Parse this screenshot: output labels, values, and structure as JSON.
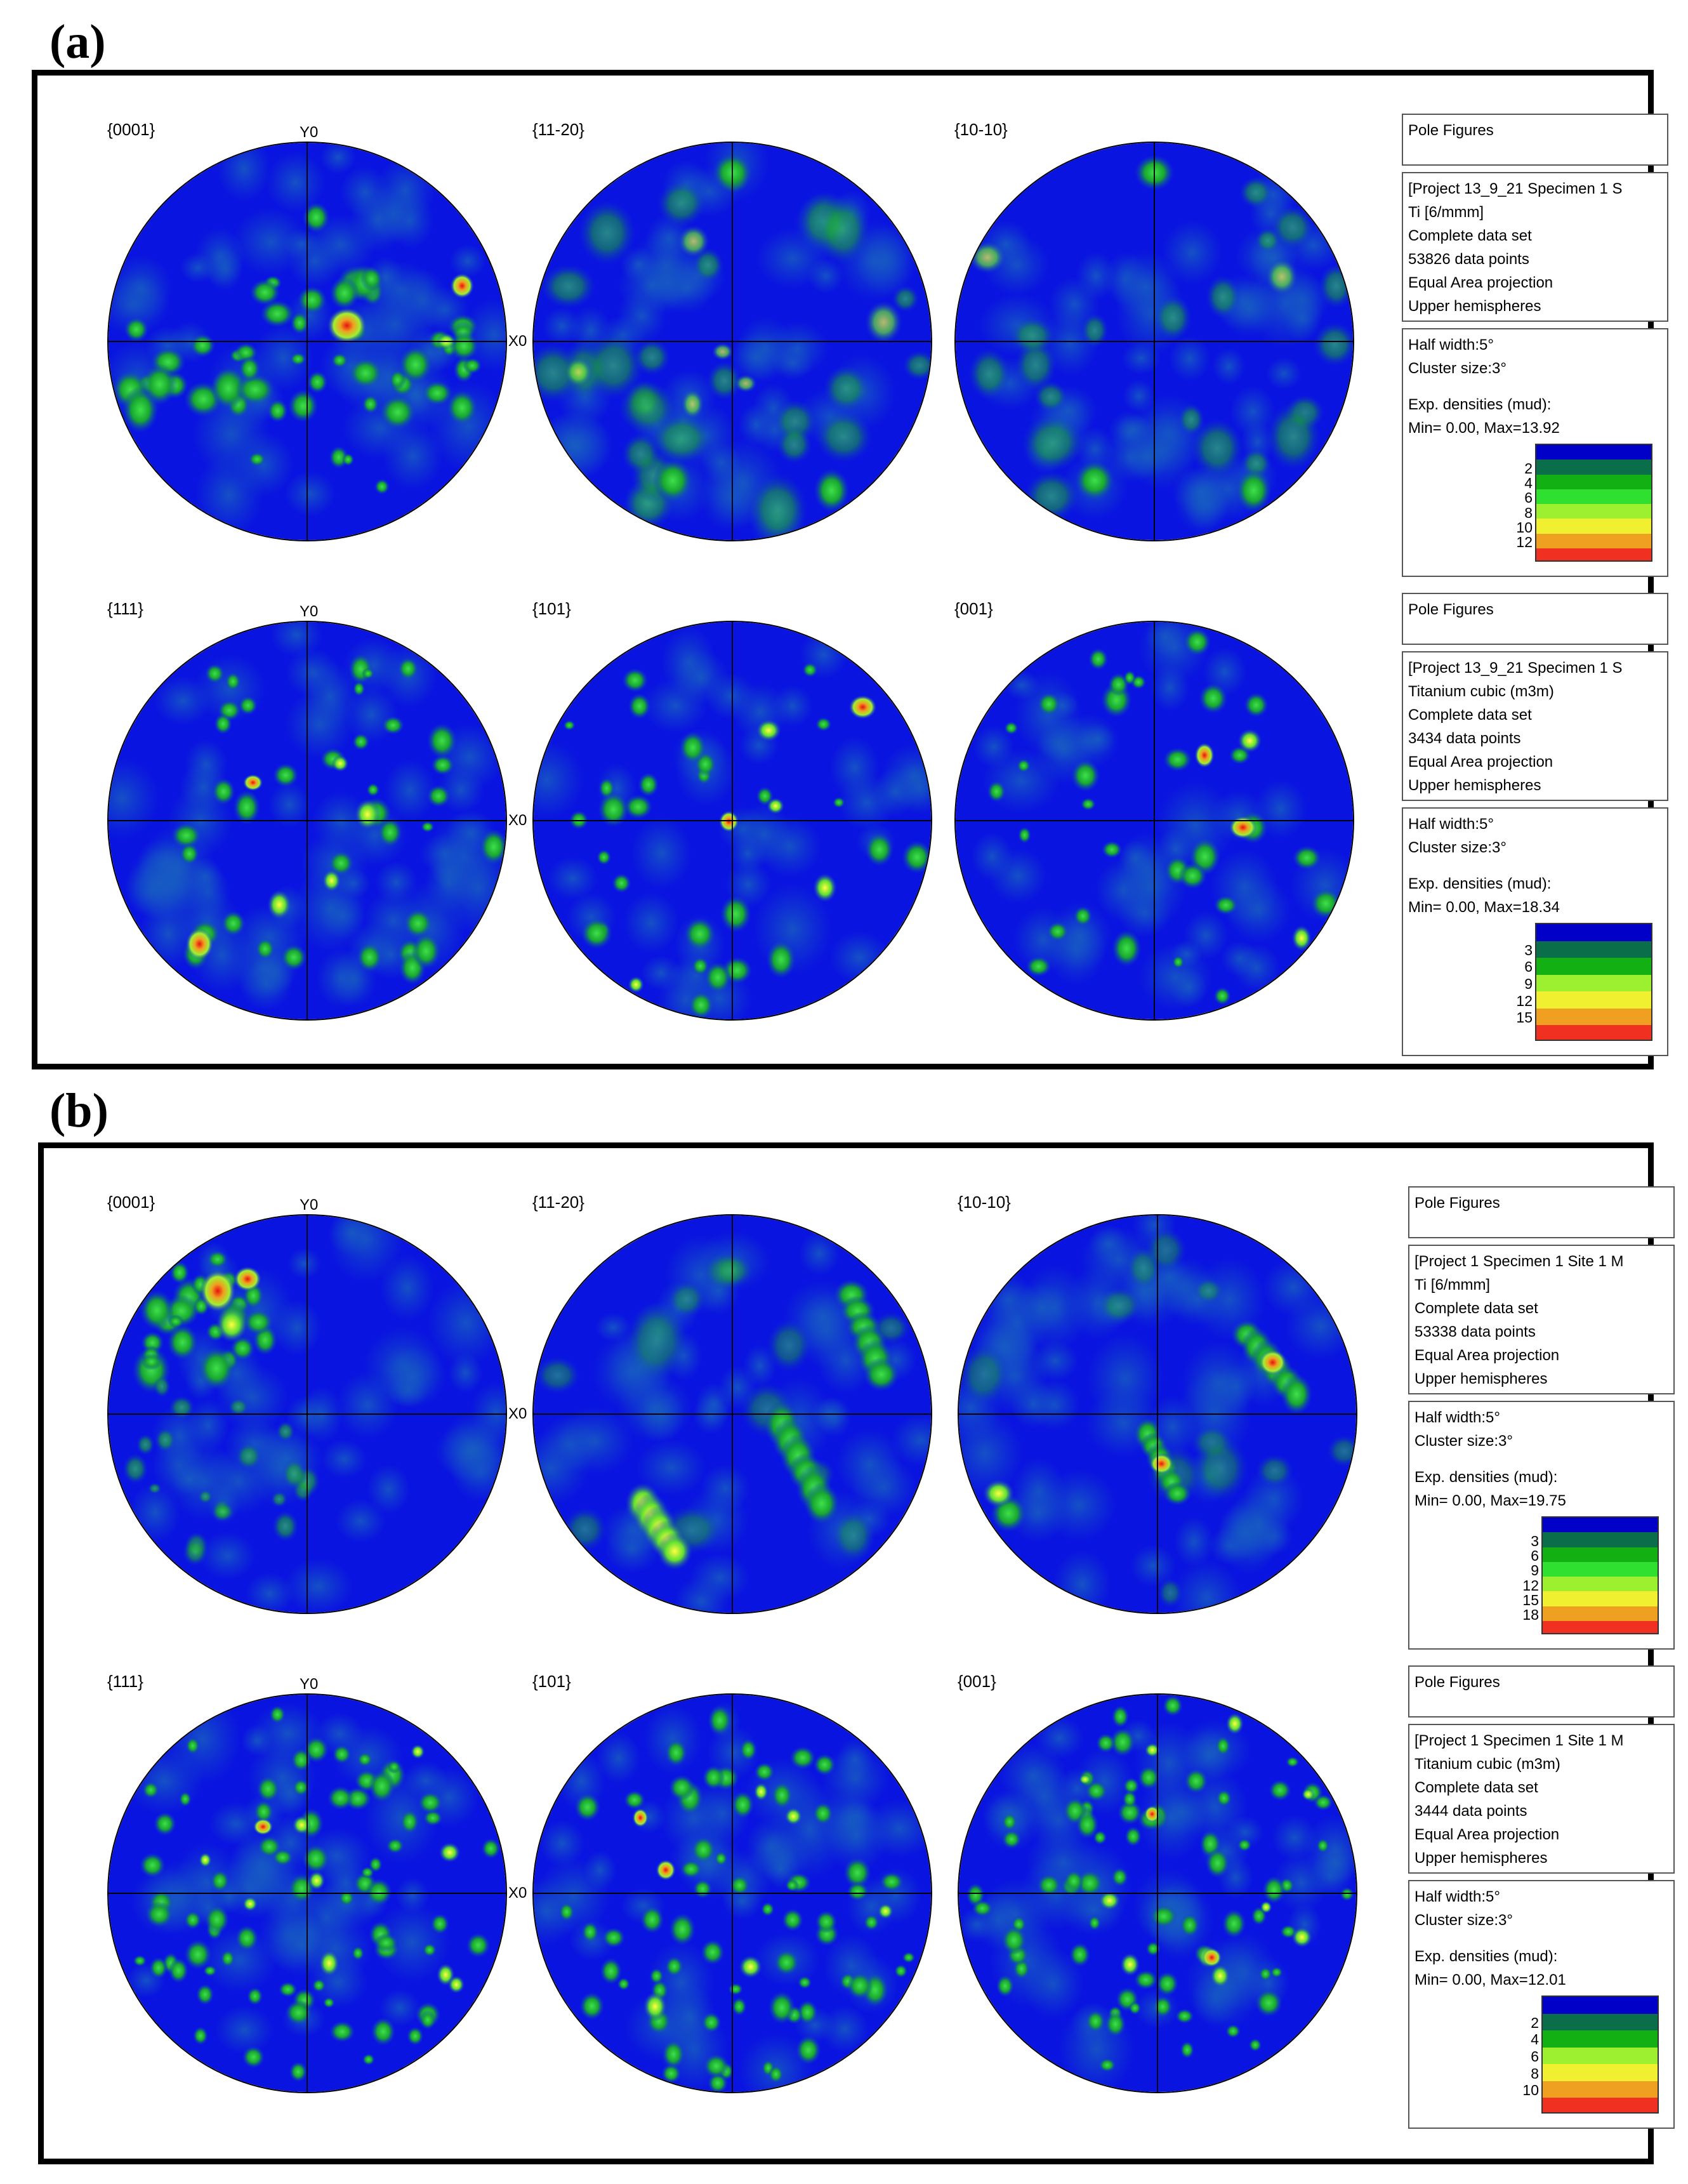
{
  "panels": [
    {
      "label": "(a)",
      "rows": [
        {
          "figures": [
            {
              "label": "{0001}",
              "seed": 11,
              "style": "scatter-strong"
            },
            {
              "label": "{11-20}",
              "seed": 23,
              "style": "diffuse"
            },
            {
              "label": "{10-10}",
              "seed": 37,
              "style": "diffuse"
            }
          ],
          "y_axis_label": "Y0",
          "x_axis_label": "X0",
          "info": {
            "title": "Pole Figures",
            "project_lines": [
              "[Project 13_9_21 Specimen 1 S",
              "Ti [6/mmm]",
              "Complete data set",
              "53826 data points",
              "Equal Area projection",
              "Upper hemispheres"
            ],
            "density_lines": [
              "Half width:5°",
              "Cluster size:3°",
              "",
              "Exp. densities (mud):",
              "Min= 0.00, Max=13.92"
            ],
            "scale_ticks": [
              "2",
              "4",
              "6",
              "8",
              "10",
              "12"
            ]
          }
        },
        {
          "figures": [
            {
              "label": "{111}",
              "seed": 41,
              "style": "spots"
            },
            {
              "label": "{101}",
              "seed": 53,
              "style": "spots"
            },
            {
              "label": "{001}",
              "seed": 67,
              "style": "spots"
            }
          ],
          "y_axis_label": "Y0",
          "x_axis_label": "X0",
          "info": {
            "title": "Pole Figures",
            "project_lines": [
              "[Project 13_9_21 Specimen 1 S",
              "Titanium cubic (m3m)",
              "Complete data set",
              "3434 data points",
              "Equal Area projection",
              "Upper hemispheres"
            ],
            "density_lines": [
              "Half width:5°",
              "Cluster size:3°",
              "",
              "Exp. densities (mud):",
              "Min= 0.00, Max=18.34"
            ],
            "scale_ticks": [
              "3",
              "6",
              "9",
              "12",
              "15"
            ]
          }
        }
      ]
    },
    {
      "label": "(b)",
      "rows": [
        {
          "figures": [
            {
              "label": "{0001}",
              "seed": 71,
              "style": "cluster-tl"
            },
            {
              "label": "{11-20}",
              "seed": 83,
              "style": "streaks"
            },
            {
              "label": "{10-10}",
              "seed": 97,
              "style": "streaks2"
            }
          ],
          "y_axis_label": "Y0",
          "x_axis_label": "X0",
          "info": {
            "title": "Pole Figures",
            "project_lines": [
              "[Project 1 Specimen 1 Site 1 M",
              "Ti [6/mmm]",
              "Complete data set",
              "53338 data points",
              "Equal Area projection",
              "Upper hemispheres"
            ],
            "density_lines": [
              "Half width:5°",
              "Cluster size:3°",
              "",
              "Exp. densities (mud):",
              "Min= 0.00, Max=19.75"
            ],
            "scale_ticks": [
              "3",
              "6",
              "9",
              "12",
              "15",
              "18"
            ]
          }
        },
        {
          "figures": [
            {
              "label": "{111}",
              "seed": 101,
              "style": "many"
            },
            {
              "label": "{101}",
              "seed": 113,
              "style": "many"
            },
            {
              "label": "{001}",
              "seed": 127,
              "style": "many"
            }
          ],
          "y_axis_label": "Y0",
          "x_axis_label": "X0",
          "info": {
            "title": "Pole Figures",
            "project_lines": [
              "[Project 1 Specimen 1 Site 1 M",
              "Titanium cubic (m3m)",
              "Complete data set",
              "3444 data points",
              "Equal Area projection",
              "Upper hemispheres"
            ],
            "density_lines": [
              "Half width:5°",
              "Cluster size:3°",
              "",
              "Exp. densities (mud):",
              "Min= 0.00, Max=12.01"
            ],
            "scale_ticks": [
              "2",
              "4",
              "6",
              "8",
              "10"
            ]
          }
        }
      ]
    }
  ],
  "colors": {
    "background_blue": "#0a14e0",
    "scale_stops": [
      "#0000c8",
      "#0a6e4a",
      "#12b012",
      "#30e030",
      "#9cf030",
      "#f0f030",
      "#f0a020",
      "#f03020"
    ]
  }
}
